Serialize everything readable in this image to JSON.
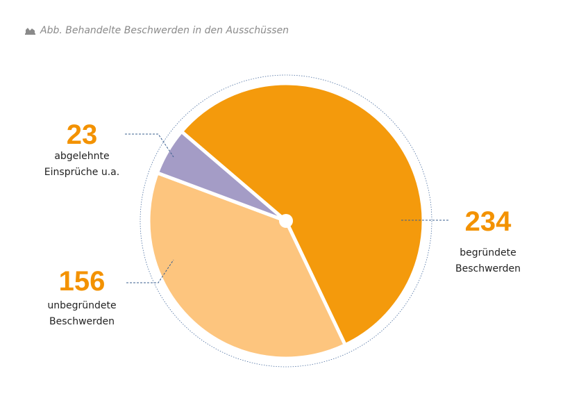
{
  "chart_data": {
    "type": "pie",
    "title": "Abb. Behandelte Beschwerden in den Ausschüssen",
    "categories": [
      "begründete\nBeschwerden",
      "unbegründete\nBeschwerden",
      "abgelehnte\nEinsprüche u.a."
    ],
    "values": [
      234,
      156,
      23
    ],
    "colors": [
      "#f49a0c",
      "#fdc57e",
      "#a49cc6"
    ]
  }
}
